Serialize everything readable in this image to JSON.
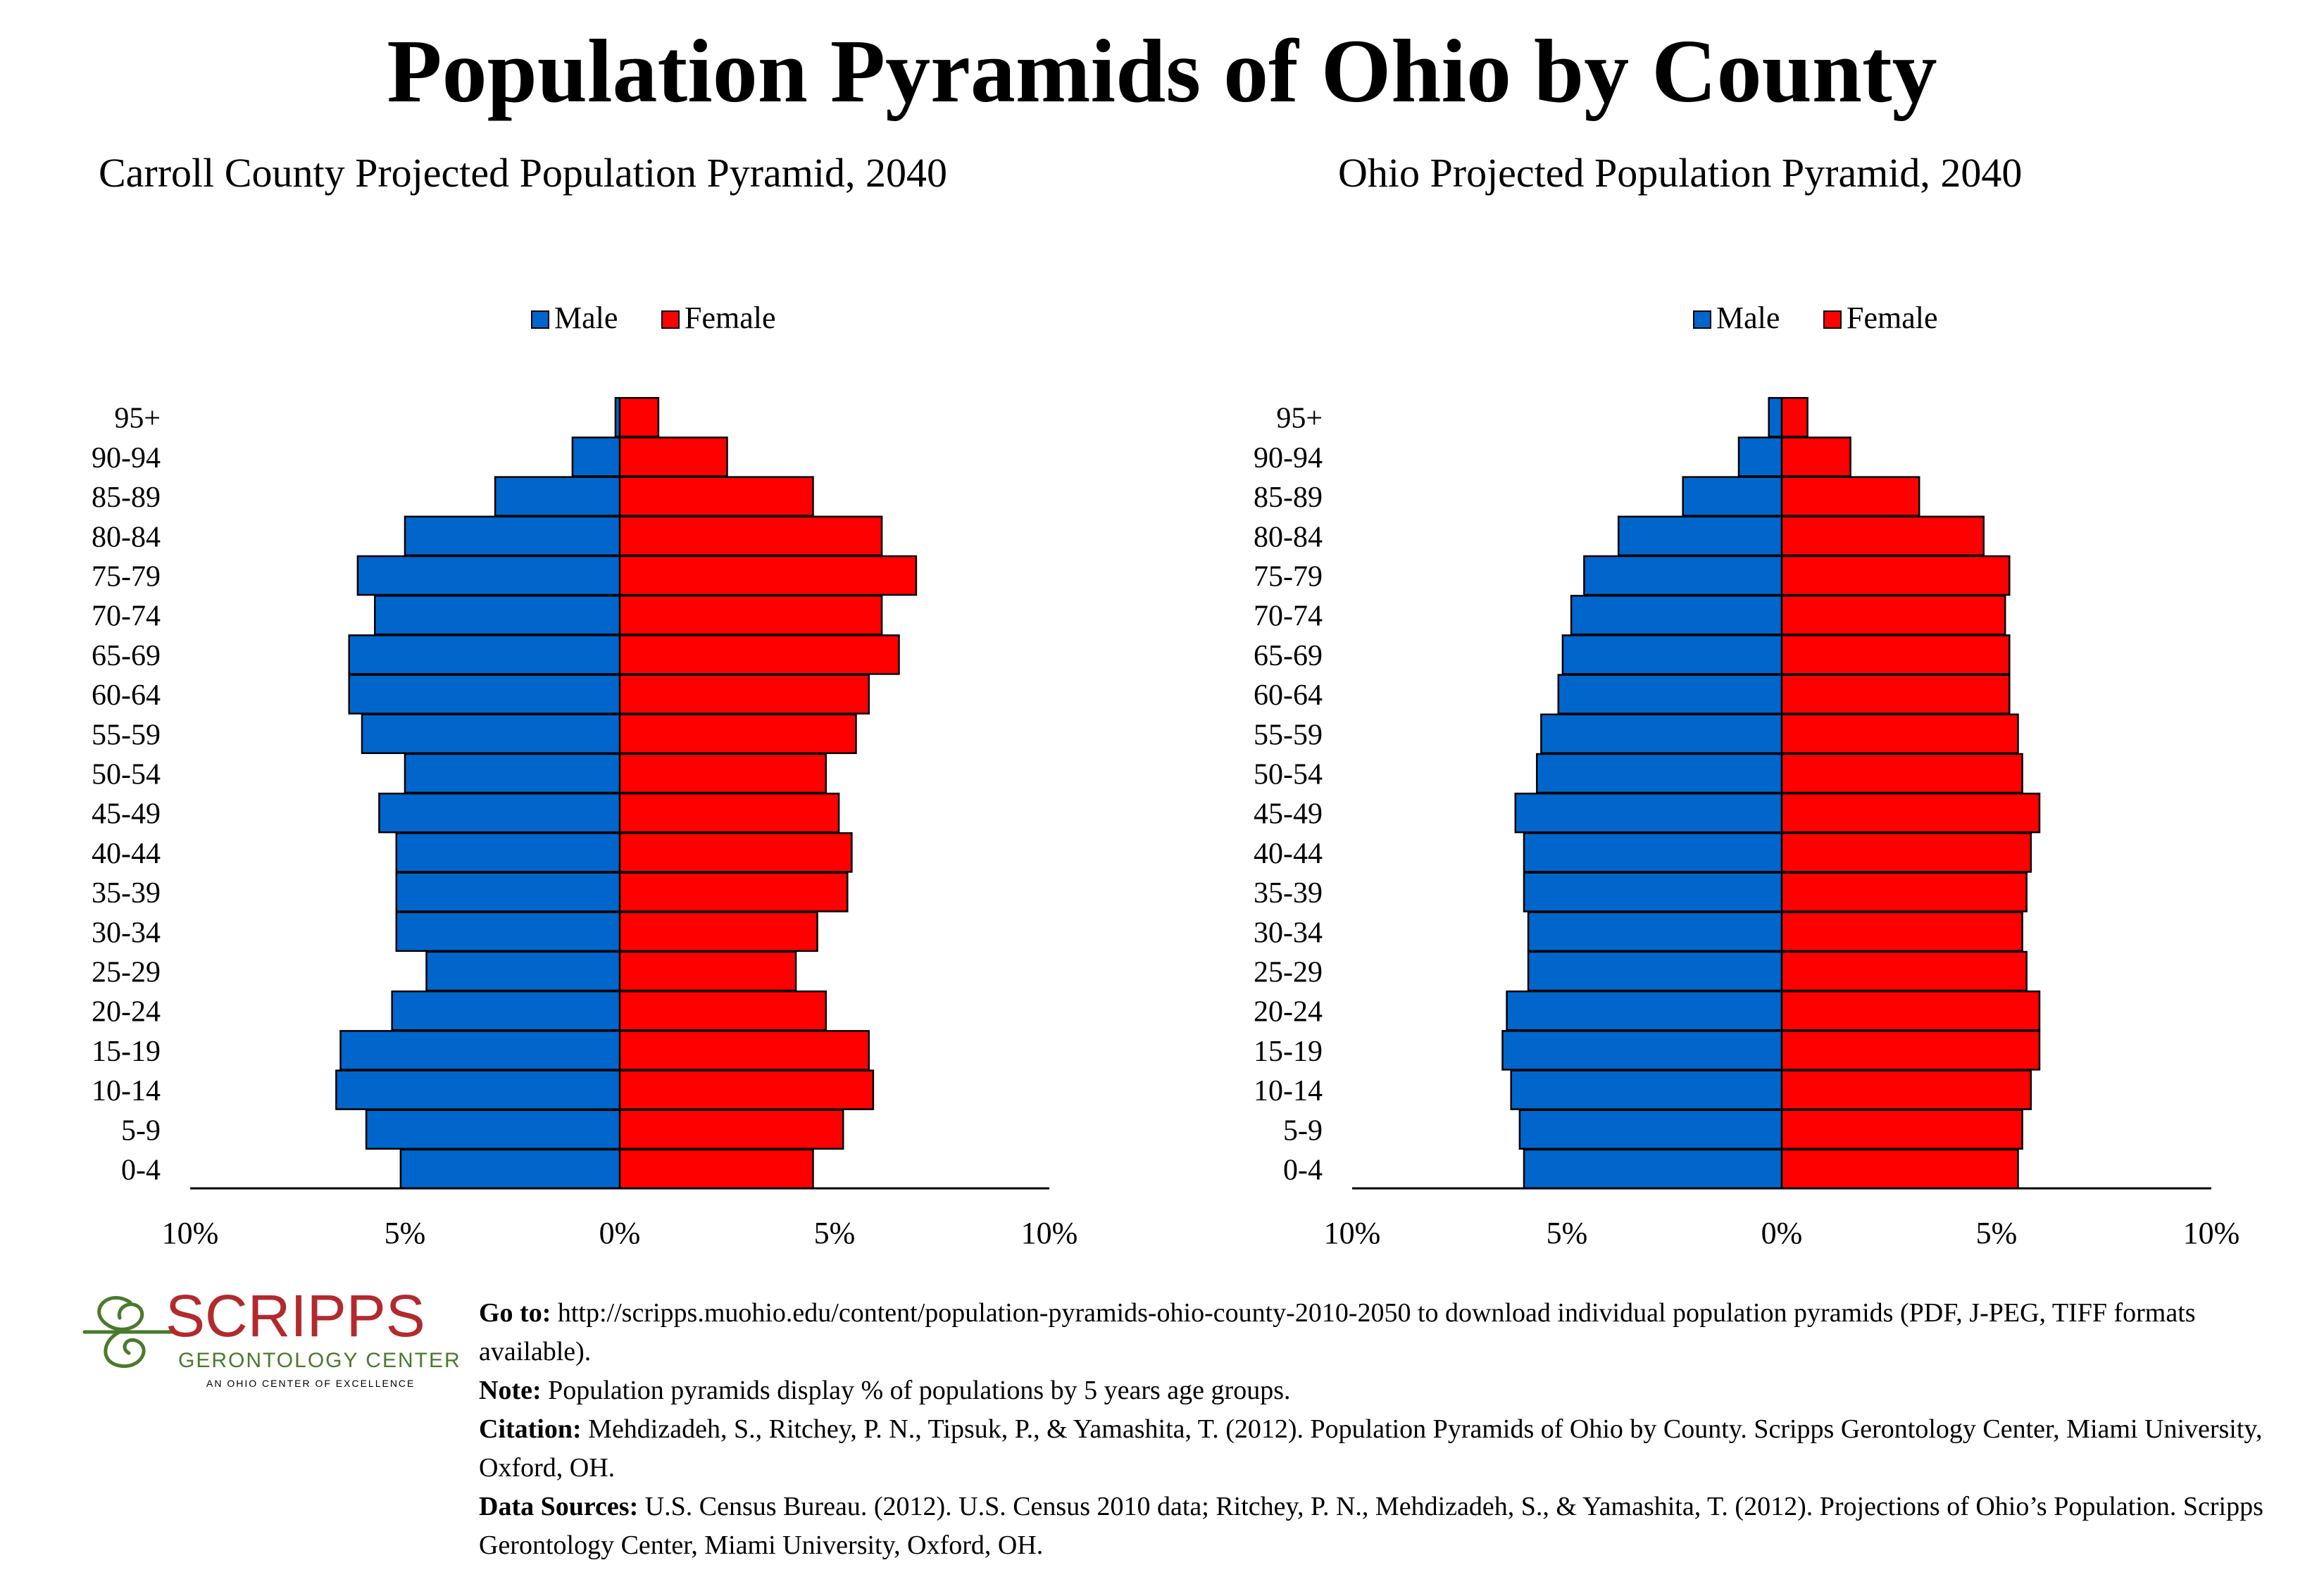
{
  "title": "Population Pyramids of Ohio by County",
  "colors": {
    "male": "#0066CC",
    "female": "#FF0000",
    "outline": "#000000",
    "logo_red": "#B22A2E",
    "logo_green": "#4A7A2C"
  },
  "chart_data": [
    {
      "type": "bar",
      "orientation": "horizontal-pyramid",
      "title": "Carroll County Projected Population Pyramid, 2040",
      "categories": [
        "0-4",
        "5-9",
        "10-14",
        "15-19",
        "20-24",
        "25-29",
        "30-34",
        "35-39",
        "40-44",
        "45-49",
        "50-54",
        "55-59",
        "60-64",
        "65-69",
        "70-74",
        "75-79",
        "80-84",
        "85-89",
        "90-94",
        "95+"
      ],
      "series": [
        {
          "name": "Male",
          "values": [
            5.1,
            5.9,
            6.6,
            6.5,
            5.3,
            4.5,
            5.2,
            5.2,
            5.2,
            5.6,
            5.0,
            6.0,
            6.3,
            6.3,
            5.7,
            6.1,
            5.0,
            2.9,
            1.1,
            0.1
          ]
        },
        {
          "name": "Female",
          "values": [
            4.5,
            5.2,
            5.9,
            5.8,
            4.8,
            4.1,
            4.6,
            5.3,
            5.4,
            5.1,
            4.8,
            5.5,
            5.8,
            6.5,
            6.1,
            6.9,
            6.1,
            4.5,
            2.5,
            0.9
          ]
        }
      ],
      "xlim": [
        -10,
        10
      ],
      "xticks": [
        "10%",
        "5%",
        "0%",
        "5%",
        "10%"
      ],
      "legend": "top-center"
    },
    {
      "type": "bar",
      "orientation": "horizontal-pyramid",
      "title": "Ohio Projected Population Pyramid, 2040",
      "categories": [
        "0-4",
        "5-9",
        "10-14",
        "15-19",
        "20-24",
        "25-29",
        "30-34",
        "35-39",
        "40-44",
        "45-49",
        "50-54",
        "55-59",
        "60-64",
        "65-69",
        "70-74",
        "75-79",
        "80-84",
        "85-89",
        "90-94",
        "95+"
      ],
      "series": [
        {
          "name": "Male",
          "values": [
            6.0,
            6.1,
            6.3,
            6.5,
            6.4,
            5.9,
            5.9,
            6.0,
            6.0,
            6.2,
            5.7,
            5.6,
            5.2,
            5.1,
            4.9,
            4.6,
            3.8,
            2.3,
            1.0,
            0.3
          ]
        },
        {
          "name": "Female",
          "values": [
            5.5,
            5.6,
            5.8,
            6.0,
            6.0,
            5.7,
            5.6,
            5.7,
            5.8,
            6.0,
            5.6,
            5.5,
            5.3,
            5.3,
            5.2,
            5.3,
            4.7,
            3.2,
            1.6,
            0.6
          ]
        }
      ],
      "xlim": [
        -10,
        10
      ],
      "xticks": [
        "10%",
        "5%",
        "0%",
        "5%",
        "10%"
      ],
      "legend": "top-center"
    }
  ],
  "logo": {
    "name": "SCRIPPS",
    "subtitle": "GERONTOLOGY CENTER",
    "tagline": "AN OHIO CENTER OF EXCELLENCE"
  },
  "footer": {
    "goto_label": "Go to:",
    "goto_text": "http://scripps.muohio.edu/content/population-pyramids-ohio-county-2010-2050 to download individual population pyramids (PDF, J-PEG, TIFF formats available).",
    "note_label": "Note:",
    "note_text": "Population pyramids display % of populations by 5 years age groups.",
    "citation_label": "Citation:",
    "citation_text": "Mehdizadeh, S., Ritchey, P. N., Tipsuk, P., & Yamashita, T. (2012). Population Pyramids of Ohio by County. Scripps Gerontology Center, Miami University, Oxford, OH.",
    "sources_label": "Data Sources:",
    "sources_text": "U.S. Census Bureau. (2012). U.S. Census 2010 data; Ritchey, P. N., Mehdizadeh, S., & Yamashita, T. (2012). Projections of Ohio’s Population. Scripps Gerontology Center, Miami University, Oxford, OH."
  }
}
